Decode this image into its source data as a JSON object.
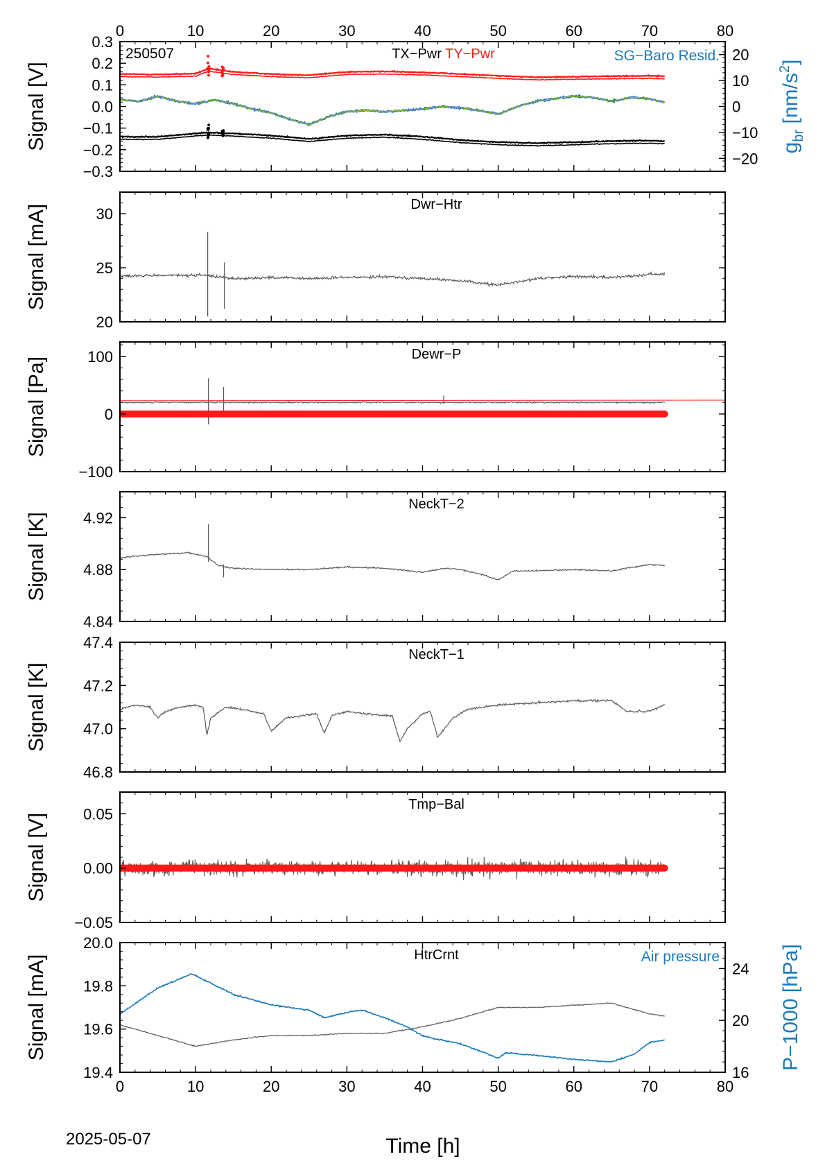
{
  "figure": {
    "date_label": "2025-05-07",
    "xlabel": "Time [h]",
    "x_range": [
      0,
      80
    ],
    "x_ticks": [
      0,
      10,
      20,
      30,
      40,
      50,
      60,
      70,
      80
    ],
    "data_end_h": 72,
    "colors": {
      "black": "#000000",
      "red": "#ff1a1a",
      "blue": "#1a7ab8",
      "gray": "#5a5a5a",
      "olive": "#9aa83a"
    }
  },
  "chart_data": [
    {
      "id": "p1",
      "type": "line",
      "corner_label": "250507",
      "title_parts": [
        {
          "text": "TX−Pwr",
          "color": "#000000"
        },
        {
          "text": "TY−Pwr",
          "color": "#ff1a1a"
        }
      ],
      "right_legend": "SG−Baro Resid.",
      "ylabel": "Signal [V]",
      "ylim": [
        -0.3,
        0.3
      ],
      "y_ticks": [
        -0.3,
        -0.2,
        -0.1,
        0.0,
        0.1,
        0.2,
        0.3
      ],
      "y_tick_labels": [
        "−0.3",
        "−0.2",
        "−0.1",
        "0.0",
        "0.1",
        "0.2",
        "0.3"
      ],
      "y2label_base": "g",
      "y2label_sub": "br",
      "y2label_unit": " [nm/s",
      "y2label_sup": "2",
      "y2label_end": "]",
      "y2lim": [
        -25,
        25
      ],
      "y2_ticks": [
        -20,
        -10,
        0,
        10,
        20
      ],
      "y2_tick_labels": [
        "−20",
        "−10",
        "0",
        "10",
        "20"
      ],
      "series": [
        {
          "name": "TY−Pwr",
          "color": "#ff1a1a",
          "axis": "y",
          "x": [
            0,
            5,
            10,
            11.7,
            15,
            20,
            25,
            30,
            35,
            40,
            45,
            50,
            55,
            60,
            65,
            70,
            72
          ],
          "y": [
            0.15,
            0.148,
            0.152,
            0.175,
            0.16,
            0.15,
            0.145,
            0.16,
            0.162,
            0.158,
            0.15,
            0.142,
            0.135,
            0.138,
            0.14,
            0.142,
            0.14
          ]
        },
        {
          "name": "TX−Pwr",
          "color": "#000000",
          "axis": "y",
          "x": [
            0,
            5,
            10,
            11.7,
            15,
            20,
            25,
            30,
            35,
            40,
            45,
            50,
            55,
            60,
            65,
            70,
            72
          ],
          "y": [
            -0.14,
            -0.14,
            -0.125,
            -0.12,
            -0.125,
            -0.135,
            -0.15,
            -0.135,
            -0.13,
            -0.14,
            -0.155,
            -0.165,
            -0.17,
            -0.165,
            -0.16,
            -0.158,
            -0.16
          ]
        },
        {
          "name": "SG−Baro Resid.",
          "color": "#1a7ab8",
          "axis": "y2",
          "x": [
            0,
            2.5,
            5,
            7.5,
            10,
            12.5,
            15,
            17.5,
            20,
            22.5,
            25,
            27.5,
            30,
            32.5,
            35,
            37.5,
            40,
            42.5,
            45,
            47.5,
            50,
            52.5,
            55,
            57.5,
            60,
            62.5,
            65,
            67.5,
            70,
            72
          ],
          "y": [
            2.5,
            2.0,
            4.0,
            2.0,
            1.0,
            2.5,
            1.0,
            -1.0,
            -2.5,
            -5.0,
            -7.0,
            -4.0,
            -2.0,
            -1.5,
            -2.0,
            -1.5,
            -1.0,
            0.0,
            -0.5,
            -1.5,
            -3.0,
            0.0,
            2.0,
            3.0,
            4.0,
            3.5,
            2.0,
            3.5,
            3.0,
            1.5
          ]
        }
      ]
    },
    {
      "id": "p2",
      "type": "line",
      "title": "Dwr−Htr",
      "ylabel": "Signal [mA]",
      "ylim": [
        20,
        32
      ],
      "y_ticks": [
        20,
        25,
        30
      ],
      "y_tick_labels": [
        "20",
        "25",
        "30"
      ],
      "series": [
        {
          "color": "#5a5a5a",
          "x": [
            0,
            5,
            10,
            11.5,
            15,
            20,
            25,
            30,
            35,
            40,
            45,
            50,
            55,
            60,
            65,
            70,
            72
          ],
          "y": [
            24.2,
            24.3,
            24.3,
            24.3,
            24.0,
            24.1,
            24.0,
            24.1,
            24.2,
            24.0,
            23.8,
            23.4,
            24.0,
            24.2,
            24.1,
            24.4,
            24.4
          ]
        }
      ]
    },
    {
      "id": "p3",
      "type": "line",
      "title": "Dewr−P",
      "ylabel": "Signal [Pa]",
      "ylim": [
        -100,
        125
      ],
      "y_ticks": [
        -100,
        0,
        100
      ],
      "y_tick_labels": [
        "−100",
        "0",
        "100"
      ],
      "series": [
        {
          "color": "#5a5a5a",
          "x": [
            0,
            72
          ],
          "y": [
            20,
            20
          ]
        },
        {
          "color": "#ff1a1a",
          "x": [
            0,
            80
          ],
          "y": [
            23,
            24
          ]
        },
        {
          "color": "#ff1a1a",
          "x": [
            0,
            72
          ],
          "y": [
            0,
            0
          ]
        }
      ]
    },
    {
      "id": "p4",
      "type": "line",
      "title": "NeckT−2",
      "ylabel": "Signal [K]",
      "ylim": [
        4.84,
        4.94
      ],
      "y_ticks": [
        4.84,
        4.88,
        4.92
      ],
      "y_tick_labels": [
        "4.84",
        "4.88",
        "4.92"
      ],
      "series": [
        {
          "color": "#5a5a5a",
          "x": [
            0,
            3,
            6,
            9,
            11.5,
            13,
            15,
            20,
            25,
            30,
            35,
            40,
            43,
            45,
            48,
            50,
            52,
            55,
            60,
            65,
            70,
            72
          ],
          "y": [
            4.889,
            4.891,
            4.892,
            4.893,
            4.89,
            4.883,
            4.881,
            4.88,
            4.88,
            4.882,
            4.881,
            4.878,
            4.881,
            4.88,
            4.876,
            4.872,
            4.879,
            4.879,
            4.88,
            4.879,
            4.884,
            4.883
          ]
        }
      ]
    },
    {
      "id": "p5",
      "type": "line",
      "title": "NeckT−1",
      "ylabel": "Signal [K]",
      "ylim": [
        46.8,
        47.4
      ],
      "y_ticks": [
        46.8,
        47.0,
        47.2,
        47.4
      ],
      "y_tick_labels": [
        "46.8",
        "47.0",
        "47.2",
        "47.4"
      ],
      "series": [
        {
          "color": "#5a5a5a",
          "x": [
            0,
            2,
            4,
            5,
            6,
            8,
            10,
            11,
            11.5,
            12,
            14,
            16,
            19,
            20,
            22,
            26,
            27,
            28,
            30,
            32,
            36,
            37,
            38,
            40,
            41,
            42,
            44,
            46,
            50,
            55,
            60,
            65,
            67,
            70,
            72
          ],
          "y": [
            47.09,
            47.11,
            47.1,
            47.05,
            47.08,
            47.1,
            47.11,
            47.1,
            46.97,
            47.05,
            47.1,
            47.09,
            47.07,
            46.99,
            47.05,
            47.07,
            46.98,
            47.06,
            47.08,
            47.07,
            47.06,
            46.94,
            47.0,
            47.07,
            47.08,
            46.96,
            47.05,
            47.09,
            47.11,
            47.12,
            47.13,
            47.13,
            47.08,
            47.08,
            47.11
          ]
        }
      ]
    },
    {
      "id": "p6",
      "type": "line",
      "title": "Tmp−Bal",
      "ylabel": "Signal [V]",
      "ylim": [
        -0.05,
        0.07
      ],
      "y_ticks": [
        -0.05,
        0.0,
        0.05
      ],
      "y_tick_labels": [
        "−0.05",
        "0.00",
        "0.05"
      ],
      "noise_amplitude": 0.01,
      "series": [
        {
          "color": "#5a5a5a",
          "x": [
            0,
            72
          ],
          "y": [
            0.0,
            0.0
          ]
        },
        {
          "color": "#ff1a1a",
          "x": [
            0,
            72
          ],
          "y": [
            0.0,
            0.0
          ]
        }
      ]
    },
    {
      "id": "p7",
      "type": "line",
      "title": "HtrCrnt",
      "right_legend": "Air pressure",
      "ylabel": "Signal [mA]",
      "ylim": [
        19.4,
        20.0
      ],
      "y_ticks": [
        19.4,
        19.6,
        19.8,
        20.0
      ],
      "y_tick_labels": [
        "19.4",
        "19.6",
        "19.8",
        "20.0"
      ],
      "y2label": "P−1000 [hPa]",
      "y2lim": [
        16,
        26
      ],
      "y2_ticks": [
        16,
        20,
        24
      ],
      "y2_tick_labels": [
        "16",
        "20",
        "24"
      ],
      "series": [
        {
          "name": "HtrCrnt",
          "color": "#5a5a5a",
          "axis": "y",
          "x": [
            0,
            5,
            10,
            15,
            20,
            25,
            30,
            35,
            40,
            45,
            50,
            55,
            60,
            65,
            70,
            72
          ],
          "y": [
            19.62,
            19.57,
            19.52,
            19.55,
            19.57,
            19.57,
            19.58,
            19.58,
            19.61,
            19.65,
            19.7,
            19.7,
            19.71,
            19.72,
            19.67,
            19.66
          ]
        },
        {
          "name": "Air pressure",
          "color": "#1a7ab8",
          "axis": "y2",
          "x": [
            0,
            5,
            9.5,
            15,
            20,
            25,
            27,
            30,
            32,
            35,
            38,
            40,
            45,
            50,
            51,
            55,
            60,
            65,
            68,
            70,
            72
          ],
          "y": [
            20.5,
            22.5,
            23.6,
            22.0,
            21.2,
            20.8,
            20.2,
            20.6,
            20.8,
            20.2,
            19.5,
            18.8,
            18.2,
            17.1,
            17.5,
            17.3,
            17.0,
            16.8,
            17.4,
            18.3,
            18.5
          ]
        }
      ]
    }
  ]
}
